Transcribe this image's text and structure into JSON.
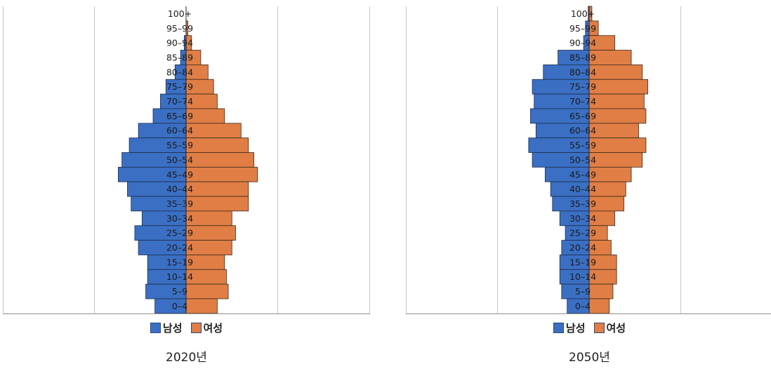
{
  "colors": {
    "male": "#3a6fc4",
    "female": "#e07e45",
    "grid": "#c8c8c8",
    "axis": "#888888"
  },
  "legend": {
    "male": "남성",
    "female": "여성"
  },
  "chart_data": [
    {
      "type": "bar",
      "orientation": "horizontal-pyramid",
      "title": "2020년",
      "categories": [
        "100+",
        "95–99",
        "90–94",
        "85–89",
        "80–84",
        "75–79",
        "70–74",
        "65–69",
        "60–64",
        "55–59",
        "50–54",
        "45–49",
        "40–44",
        "35–39",
        "30–34",
        "25–29",
        "20–24",
        "15–19",
        "10–14",
        "5–9",
        "0–4"
      ],
      "xlim": [
        -100,
        100
      ],
      "grid": true,
      "legend_position": "bottom",
      "series": [
        {
          "name": "남성",
          "values": [
            0,
            0,
            1,
            3,
            6,
            11,
            14,
            18,
            26,
            31,
            35,
            37,
            32,
            30,
            24,
            28,
            26,
            21,
            21,
            22,
            17
          ]
        },
        {
          "name": "여성",
          "values": [
            0,
            1,
            3,
            8,
            12,
            15,
            17,
            21,
            30,
            34,
            37,
            39,
            34,
            34,
            25,
            27,
            25,
            21,
            22,
            23,
            17
          ]
        }
      ]
    },
    {
      "type": "bar",
      "orientation": "horizontal-pyramid",
      "title": "2050년",
      "categories": [
        "100+",
        "95–99",
        "90–94",
        "85–89",
        "80–84",
        "75–79",
        "70–74",
        "65–69",
        "60–64",
        "55–59",
        "50–54",
        "45–49",
        "40–44",
        "35–39",
        "30–34",
        "25–29",
        "20–24",
        "15–19",
        "10–14",
        "5–9",
        "0–4"
      ],
      "xlim": [
        -100,
        100
      ],
      "grid": true,
      "legend_position": "bottom",
      "series": [
        {
          "name": "남성",
          "values": [
            0.5,
            2,
            3,
            17,
            25,
            31,
            30,
            32,
            29,
            33,
            31,
            24,
            21,
            20,
            16,
            13,
            15,
            16,
            16,
            15,
            12
          ]
        },
        {
          "name": "여성",
          "values": [
            1.5,
            5,
            14,
            23,
            29,
            32,
            30,
            31,
            27,
            31,
            29,
            23,
            20,
            19,
            14,
            10,
            12,
            15,
            15,
            13,
            11
          ]
        }
      ]
    }
  ]
}
